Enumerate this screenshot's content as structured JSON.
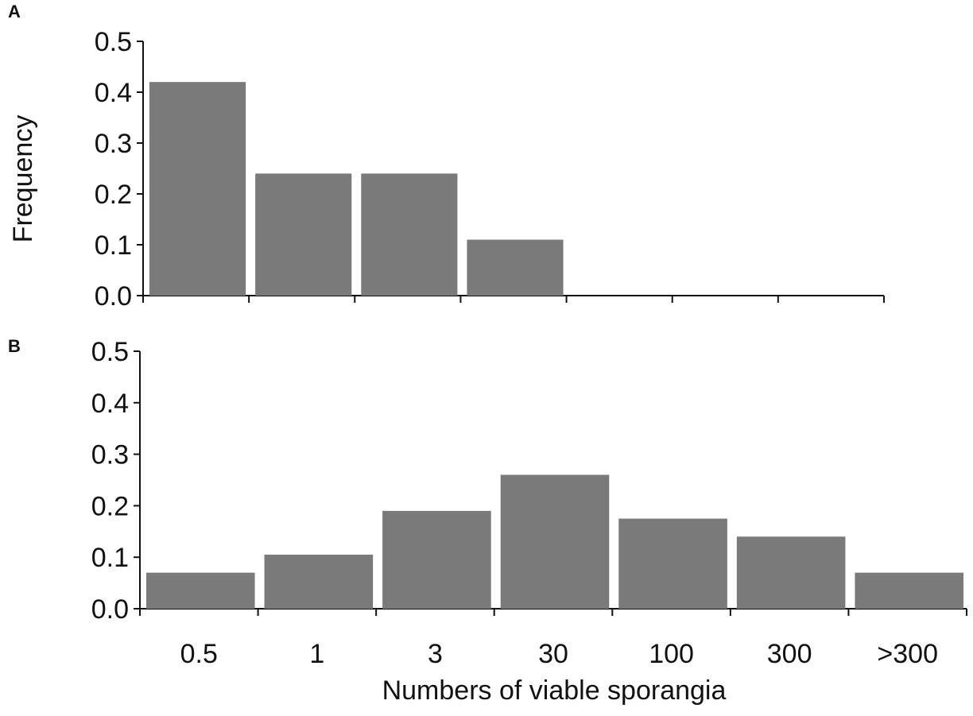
{
  "colors": {
    "bar": "#7a7a7a",
    "axis": "#111111",
    "background": "#ffffff"
  },
  "chart_data": [
    {
      "type": "bar",
      "panel_label": "A",
      "title": "",
      "xlabel": "",
      "ylabel": "Frequency",
      "ylim": [
        0,
        0.5
      ],
      "yticks": [
        "0.0",
        "0.1",
        "0.2",
        "0.3",
        "0.4",
        "0.5"
      ],
      "grid": false,
      "categories": [
        "0.5",
        "1",
        "3",
        "30",
        "100",
        "300",
        ">300"
      ],
      "values": [
        0.42,
        0.24,
        0.24,
        0.11,
        0,
        0,
        0
      ]
    },
    {
      "type": "bar",
      "panel_label": "B",
      "title": "",
      "xlabel": "Numbers of viable sporangia",
      "ylabel": "",
      "ylim": [
        0,
        0.5
      ],
      "yticks": [
        "0.0",
        "0.1",
        "0.2",
        "0.3",
        "0.4",
        "0.5"
      ],
      "grid": false,
      "categories": [
        "0.5",
        "1",
        "3",
        "30",
        "100",
        "300",
        ">300"
      ],
      "values": [
        0.07,
        0.105,
        0.19,
        0.26,
        0.175,
        0.14,
        0.07
      ]
    }
  ]
}
